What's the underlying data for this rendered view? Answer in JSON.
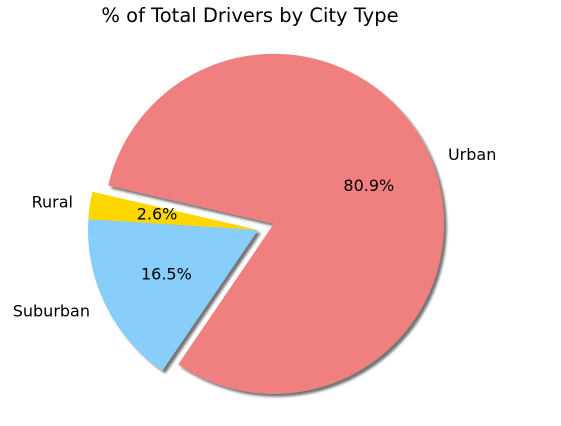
{
  "chart_data": {
    "type": "pie",
    "title": "% of Total Drivers by City Type",
    "slices": [
      {
        "label": "Rural",
        "value": 2.6,
        "pct_label": "2.6%",
        "color": "#ffd700"
      },
      {
        "label": "Suburban",
        "value": 16.5,
        "pct_label": "16.5%",
        "color": "#87cefa"
      },
      {
        "label": "Urban",
        "value": 80.9,
        "pct_label": "80.9%",
        "color": "#f08080"
      }
    ],
    "exploded": [
      "Urban"
    ],
    "shadow": true
  }
}
